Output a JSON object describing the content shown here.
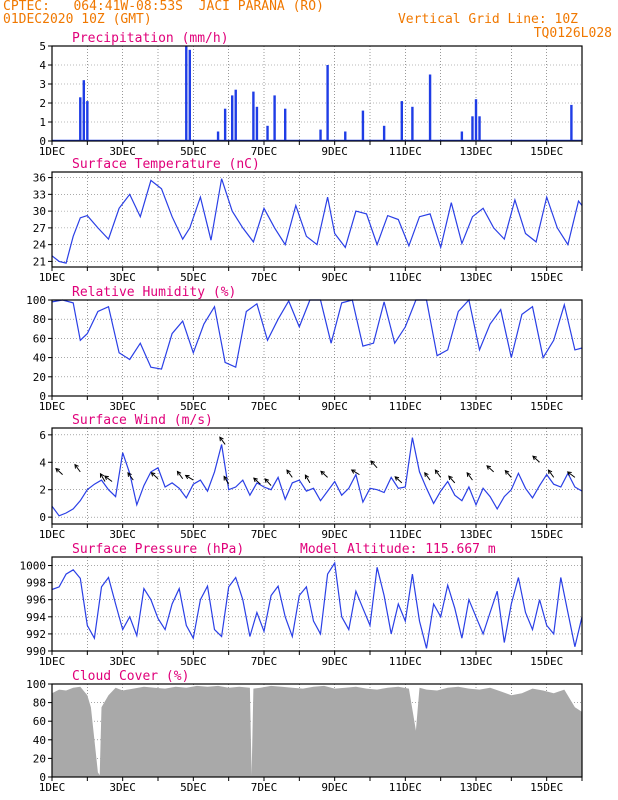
{
  "header": {
    "line1_left": "CPTEC:   064:41W-08:53S  JACI PARANA (RO)",
    "line2_left": "01DEC2020 10Z (GMT)",
    "line2_right": "Vertical Grid Line: 10Z",
    "line3_right": "TQ0126L028",
    "model_altitude": "Model Altitude: 115.667 m"
  },
  "colors": {
    "header": "#f07800",
    "title": "#e0007a",
    "line": "#2a3fe6",
    "bars": "#1f3de6",
    "cloud": "#a9a9a9",
    "arrow": "#000000"
  },
  "chart_data": [
    {
      "type": "bar",
      "title": "Precipitation (mm/h)",
      "x_start": "01DEC",
      "x_end": "16DEC",
      "ylim": [
        0,
        5
      ],
      "yticks": [
        "0",
        "1",
        "2",
        "3",
        "4",
        "5"
      ],
      "xticks": [
        "1DEC",
        "3DEC",
        "5DEC",
        "7DEC",
        "9DEC",
        "11DEC",
        "13DEC",
        "15DEC"
      ],
      "values_day_mm": [
        [
          1.8,
          2.3
        ],
        [
          1.9,
          3.2
        ],
        [
          2.0,
          2.1
        ],
        [
          4.8,
          5.0
        ],
        [
          4.9,
          4.8
        ],
        [
          5.7,
          0.5
        ],
        [
          5.9,
          1.7
        ],
        [
          6.1,
          2.4
        ],
        [
          6.2,
          2.7
        ],
        [
          6.7,
          2.6
        ],
        [
          6.8,
          1.8
        ],
        [
          7.1,
          0.8
        ],
        [
          7.3,
          2.4
        ],
        [
          7.6,
          1.7
        ],
        [
          8.6,
          0.6
        ],
        [
          8.8,
          4.0
        ],
        [
          9.3,
          0.5
        ],
        [
          9.8,
          1.6
        ],
        [
          10.4,
          0.8
        ],
        [
          10.9,
          2.1
        ],
        [
          11.2,
          1.8
        ],
        [
          11.7,
          3.5
        ],
        [
          12.6,
          0.5
        ],
        [
          12.9,
          1.3
        ],
        [
          13.0,
          2.2
        ],
        [
          13.1,
          1.3
        ],
        [
          15.7,
          1.9
        ]
      ]
    },
    {
      "type": "line",
      "title": "Surface Temperature (nC)",
      "ylim": [
        20,
        37
      ],
      "yticks": [
        "21",
        "24",
        "27",
        "30",
        "33",
        "36"
      ],
      "xticks": [
        "1DEC",
        "3DEC",
        "5DEC",
        "7DEC",
        "9DEC",
        "11DEC",
        "13DEC",
        "15DEC"
      ],
      "x": [
        1.0,
        1.2,
        1.4,
        1.6,
        1.8,
        2.0,
        2.3,
        2.6,
        2.9,
        3.2,
        3.5,
        3.8,
        4.1,
        4.4,
        4.7,
        4.9,
        5.2,
        5.5,
        5.8,
        6.1,
        6.4,
        6.7,
        7.0,
        7.3,
        7.6,
        7.9,
        8.2,
        8.5,
        8.8,
        9.0,
        9.3,
        9.6,
        9.9,
        10.2,
        10.5,
        10.8,
        11.1,
        11.4,
        11.7,
        12.0,
        12.3,
        12.6,
        12.9,
        13.2,
        13.5,
        13.8,
        14.1,
        14.4,
        14.7,
        15.0,
        15.3,
        15.6,
        15.9,
        16.0
      ],
      "y": [
        22.0,
        21.0,
        20.7,
        25.5,
        28.8,
        29.2,
        27.0,
        25.0,
        30.5,
        33.0,
        29.0,
        35.5,
        34.0,
        29.0,
        25.0,
        27.0,
        32.5,
        24.8,
        35.8,
        30.0,
        27.0,
        24.5,
        30.5,
        27.0,
        24.0,
        31.0,
        25.5,
        24.0,
        32.5,
        26.0,
        23.5,
        30.0,
        29.5,
        24.0,
        29.2,
        28.5,
        23.8,
        29.0,
        29.5,
        23.5,
        31.5,
        24.2,
        29.0,
        30.5,
        27.0,
        25.0,
        32.0,
        26.0,
        24.5,
        32.5,
        27.0,
        24.0,
        31.8,
        31.0
      ]
    },
    {
      "type": "line",
      "title": "Relative Humidity (%)",
      "ylim": [
        0,
        100
      ],
      "yticks": [
        "0",
        "20",
        "40",
        "60",
        "80",
        "100"
      ],
      "xticks": [
        "1DEC",
        "3DEC",
        "5DEC",
        "7DEC",
        "9DEC",
        "11DEC",
        "13DEC",
        "15DEC"
      ],
      "x": [
        1.0,
        1.3,
        1.6,
        1.8,
        2.0,
        2.3,
        2.6,
        2.9,
        3.2,
        3.5,
        3.8,
        4.1,
        4.4,
        4.7,
        5.0,
        5.3,
        5.6,
        5.9,
        6.2,
        6.5,
        6.8,
        7.1,
        7.4,
        7.7,
        8.0,
        8.3,
        8.6,
        8.9,
        9.2,
        9.5,
        9.8,
        10.1,
        10.4,
        10.7,
        11.0,
        11.3,
        11.6,
        11.9,
        12.2,
        12.5,
        12.8,
        13.1,
        13.4,
        13.7,
        14.0,
        14.3,
        14.6,
        14.9,
        15.2,
        15.5,
        15.8,
        16.0
      ],
      "y": [
        98,
        100,
        97,
        58,
        65,
        88,
        93,
        45,
        38,
        55,
        30,
        28,
        65,
        78,
        45,
        75,
        93,
        35,
        30,
        88,
        96,
        58,
        80,
        99,
        72,
        100,
        100,
        55,
        97,
        100,
        52,
        55,
        98,
        55,
        72,
        100,
        100,
        42,
        48,
        88,
        100,
        48,
        75,
        90,
        40,
        85,
        93,
        40,
        58,
        95,
        48,
        50
      ]
    },
    {
      "type": "line",
      "title": "Surface Wind (m/s)",
      "ylim": [
        -0.5,
        6.5
      ],
      "yticks": [
        "0",
        "2",
        "4",
        "6"
      ],
      "xticks": [
        "1DEC",
        "3DEC",
        "5DEC",
        "7DEC",
        "9DEC",
        "11DEC",
        "13DEC",
        "15DEC"
      ],
      "x": [
        1.0,
        1.2,
        1.4,
        1.6,
        1.8,
        2.0,
        2.2,
        2.4,
        2.6,
        2.8,
        3.0,
        3.2,
        3.4,
        3.6,
        3.8,
        4.0,
        4.2,
        4.4,
        4.6,
        4.8,
        5.0,
        5.2,
        5.4,
        5.6,
        5.8,
        6.0,
        6.2,
        6.4,
        6.6,
        6.8,
        7.0,
        7.2,
        7.4,
        7.6,
        7.8,
        8.0,
        8.2,
        8.4,
        8.6,
        8.8,
        9.0,
        9.2,
        9.4,
        9.6,
        9.8,
        10.0,
        10.2,
        10.4,
        10.6,
        10.8,
        11.0,
        11.2,
        11.4,
        11.6,
        11.8,
        12.0,
        12.2,
        12.4,
        12.6,
        12.8,
        13.0,
        13.2,
        13.4,
        13.6,
        13.8,
        14.0,
        14.2,
        14.4,
        14.6,
        14.8,
        15.0,
        15.2,
        15.4,
        15.6,
        15.8,
        16.0
      ],
      "y": [
        0.8,
        0.1,
        0.3,
        0.6,
        1.2,
        2.0,
        2.4,
        2.7,
        2.0,
        1.5,
        4.7,
        3.2,
        0.9,
        2.3,
        3.3,
        3.6,
        2.2,
        2.5,
        2.1,
        1.4,
        2.4,
        2.7,
        1.9,
        3.3,
        5.3,
        2.0,
        2.2,
        2.7,
        1.6,
        2.5,
        2.2,
        2.0,
        2.9,
        1.3,
        2.5,
        2.7,
        1.9,
        2.1,
        1.2,
        1.9,
        2.6,
        1.6,
        2.1,
        3.1,
        1.1,
        2.1,
        2.0,
        1.8,
        2.9,
        2.1,
        2.2,
        5.8,
        3.3,
        2.1,
        1.0,
        1.9,
        2.6,
        1.6,
        1.2,
        2.2,
        0.9,
        2.1,
        1.5,
        0.6,
        1.5,
        2.0,
        3.2,
        2.1,
        1.4,
        2.3,
        3.1,
        2.4,
        2.2,
        3.2,
        2.2,
        1.9
      ],
      "arrows": [
        [
          1.3,
          2.4,
          3.1
        ],
        [
          1.8,
          2.2,
          3.3
        ],
        [
          2.5,
          2.1,
          2.6
        ],
        [
          2.7,
          2.5,
          2.6
        ],
        [
          3.3,
          2.2,
          2.7
        ],
        [
          4.0,
          2.4,
          2.8
        ],
        [
          4.7,
          2.2,
          2.8
        ],
        [
          5.0,
          2.6,
          2.7
        ],
        [
          5.9,
          2.2,
          5.3
        ],
        [
          6.0,
          2.1,
          2.4
        ],
        [
          6.9,
          2.4,
          2.4
        ],
        [
          7.2,
          2.3,
          2.3
        ],
        [
          7.8,
          2.2,
          2.9
        ],
        [
          8.3,
          2.1,
          2.5
        ],
        [
          8.8,
          2.4,
          2.9
        ],
        [
          9.7,
          2.6,
          3.1
        ],
        [
          10.2,
          2.3,
          3.6
        ],
        [
          10.9,
          2.4,
          2.5
        ],
        [
          11.7,
          2.2,
          2.7
        ],
        [
          12.0,
          2.2,
          2.9
        ],
        [
          12.4,
          2.3,
          2.5
        ],
        [
          12.9,
          2.2,
          2.7
        ],
        [
          13.5,
          2.4,
          3.3
        ],
        [
          14.0,
          2.3,
          2.9
        ],
        [
          14.8,
          2.4,
          4.0
        ],
        [
          15.2,
          2.2,
          2.9
        ],
        [
          15.8,
          2.5,
          2.9
        ]
      ]
    },
    {
      "type": "line",
      "title": "Surface Pressure (hPa)",
      "ylim": [
        990,
        1001
      ],
      "yticks": [
        "990",
        "992",
        "994",
        "996",
        "998",
        "1000"
      ],
      "xticks": [
        "1DEC",
        "3DEC",
        "5DEC",
        "7DEC",
        "9DEC",
        "11DEC",
        "13DEC",
        "15DEC"
      ],
      "x": [
        1.0,
        1.2,
        1.4,
        1.6,
        1.8,
        2.0,
        2.2,
        2.4,
        2.6,
        2.8,
        3.0,
        3.2,
        3.4,
        3.6,
        3.8,
        4.0,
        4.2,
        4.4,
        4.6,
        4.8,
        5.0,
        5.2,
        5.4,
        5.6,
        5.8,
        6.0,
        6.2,
        6.4,
        6.6,
        6.8,
        7.0,
        7.2,
        7.4,
        7.6,
        7.8,
        8.0,
        8.2,
        8.4,
        8.6,
        8.8,
        9.0,
        9.2,
        9.4,
        9.6,
        9.8,
        10.0,
        10.2,
        10.4,
        10.6,
        10.8,
        11.0,
        11.2,
        11.4,
        11.6,
        11.8,
        12.0,
        12.2,
        12.4,
        12.6,
        12.8,
        13.0,
        13.2,
        13.4,
        13.6,
        13.8,
        14.0,
        14.2,
        14.4,
        14.6,
        14.8,
        15.0,
        15.2,
        15.4,
        15.6,
        15.8,
        16.0
      ],
      "y": [
        997.2,
        997.5,
        999.0,
        999.5,
        998.5,
        993.0,
        991.5,
        997.5,
        998.6,
        995.5,
        992.5,
        994.0,
        991.8,
        997.3,
        996.0,
        993.8,
        992.5,
        995.5,
        997.3,
        993.0,
        991.5,
        996.0,
        997.6,
        992.5,
        991.7,
        997.5,
        998.6,
        996.0,
        991.7,
        994.5,
        992.3,
        996.5,
        997.6,
        994.0,
        991.7,
        996.5,
        997.5,
        993.5,
        992.0,
        999.0,
        1000.3,
        994.0,
        992.5,
        997.0,
        995.0,
        993.0,
        999.8,
        996.5,
        992.0,
        995.5,
        993.5,
        999.0,
        993.5,
        990.3,
        995.5,
        994.0,
        997.7,
        995.0,
        991.5,
        996.0,
        994.0,
        992.0,
        994.5,
        997.0,
        991.0,
        995.5,
        998.6,
        994.5,
        992.5,
        996.0,
        993.0,
        992.0,
        998.6,
        994.5,
        990.5,
        994.0
      ]
    },
    {
      "type": "area",
      "title": "Cloud Cover (%)",
      "ylim": [
        0,
        100
      ],
      "yticks": [
        "0",
        "20",
        "40",
        "60",
        "80",
        "100"
      ],
      "xticks": [
        "1DEC",
        "3DEC",
        "5DEC",
        "7DEC",
        "9DEC",
        "11DEC",
        "13DEC",
        "15DEC"
      ],
      "x": [
        1.0,
        1.2,
        1.4,
        1.6,
        1.8,
        2.0,
        2.1,
        2.2,
        2.3,
        2.35,
        2.4,
        2.6,
        2.8,
        3.0,
        3.3,
        3.6,
        3.9,
        4.2,
        4.5,
        4.8,
        5.1,
        5.4,
        5.7,
        6.0,
        6.3,
        6.6,
        6.65,
        6.7,
        6.9,
        7.2,
        7.5,
        7.8,
        8.1,
        8.4,
        8.7,
        9.0,
        9.3,
        9.6,
        9.9,
        10.2,
        10.5,
        10.8,
        11.1,
        11.3,
        11.4,
        11.6,
        11.9,
        12.2,
        12.5,
        12.8,
        13.1,
        13.4,
        13.7,
        14.0,
        14.3,
        14.6,
        14.9,
        15.2,
        15.5,
        15.8,
        16.0
      ],
      "y": [
        90,
        94,
        93,
        96,
        97,
        88,
        75,
        40,
        5,
        2,
        75,
        88,
        96,
        93,
        95,
        97,
        96,
        95,
        97,
        96,
        98,
        97,
        98,
        96,
        97,
        96,
        2,
        95,
        96,
        98,
        97,
        96,
        95,
        97,
        98,
        95,
        96,
        97,
        95,
        94,
        96,
        97,
        95,
        50,
        96,
        94,
        93,
        96,
        97,
        95,
        94,
        96,
        92,
        88,
        90,
        95,
        93,
        90,
        94,
        75,
        70
      ]
    }
  ]
}
